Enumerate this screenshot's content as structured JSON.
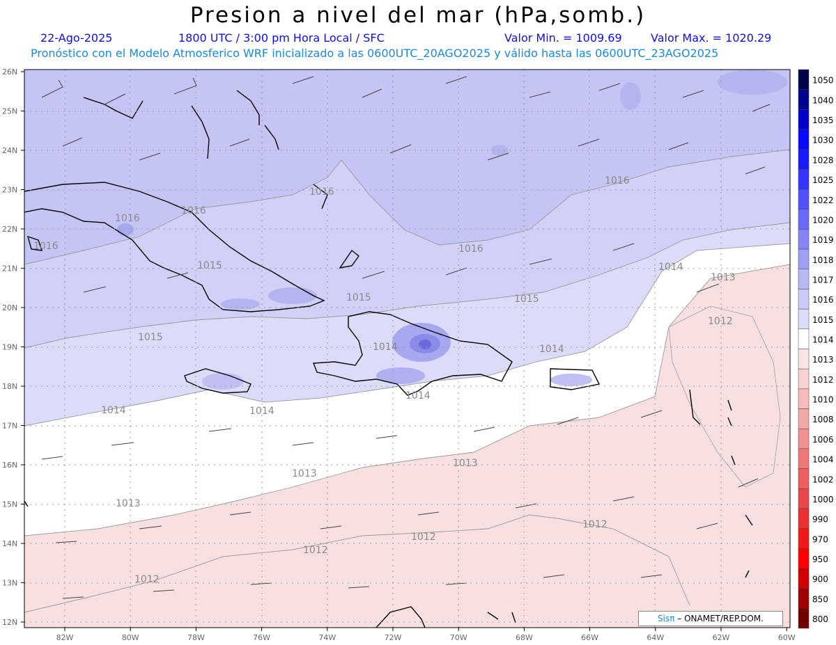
{
  "header": {
    "title": "Presion a nivel del mar (hPa,somb.)",
    "date": "22-Ago-2025",
    "time": "1800 UTC / 3:00 pm Hora Local / SFC",
    "min_label": "Valor Min. = 1009.69",
    "max_label": "Valor Max. = 1020.29",
    "model_info": "Pronóstico con el Modelo Atmosferico WRF inicializado a las 0600UTC_20AGO2025 y válido hasta las  0600UTC_23AGO2025"
  },
  "map": {
    "lat_labels": [
      "26N",
      "25N",
      "24N",
      "23N",
      "22N",
      "21N",
      "20N",
      "19N",
      "18N",
      "17N",
      "16N",
      "15N",
      "14N",
      "13N",
      "12N"
    ],
    "lon_labels": [
      "82W",
      "80W",
      "78W",
      "76W",
      "74W",
      "72W",
      "70W",
      "68W",
      "66W",
      "64W",
      "62W",
      "60W"
    ],
    "contour_labels": [
      "1016",
      "1016",
      "1016",
      "1016",
      "1016",
      "1016",
      "1015",
      "1015",
      "1015",
      "1015",
      "1014",
      "1014",
      "1014",
      "1014",
      "1014",
      "1014",
      "1013",
      "1013",
      "1013",
      "1013",
      "1012",
      "1012",
      "1012",
      "1012",
      "1012"
    ]
  },
  "legend": {
    "levels": [
      "1050",
      "1040",
      "1035",
      "1030",
      "1028",
      "1025",
      "1022",
      "1020",
      "1019",
      "1018",
      "1017",
      "1016",
      "1015",
      "1014",
      "1013",
      "1012",
      "1010",
      "1008",
      "1006",
      "1004",
      "1002",
      "1000",
      "990",
      "970",
      "950",
      "900",
      "850",
      "800"
    ],
    "colors": [
      "#00004a",
      "#000090",
      "#0000c8",
      "#0808ff",
      "#1a1aff",
      "#3535ff",
      "#5050ff",
      "#6a6aff",
      "#8585f5",
      "#9f9ff5",
      "#b8b8f5",
      "#cacaf8",
      "#dcdcfa",
      "#ffffff",
      "#fbe4e4",
      "#f8d2d2",
      "#f5bcbc",
      "#f3a8a8",
      "#f19090",
      "#ee7878",
      "#ec6060",
      "#ea4848",
      "#ec3030",
      "#f21818",
      "#ff0000",
      "#d00000",
      "#a00000",
      "#700000"
    ]
  },
  "credit": {
    "sis": "Sisπ",
    "text": "– ONAMET/REP.DOM."
  }
}
